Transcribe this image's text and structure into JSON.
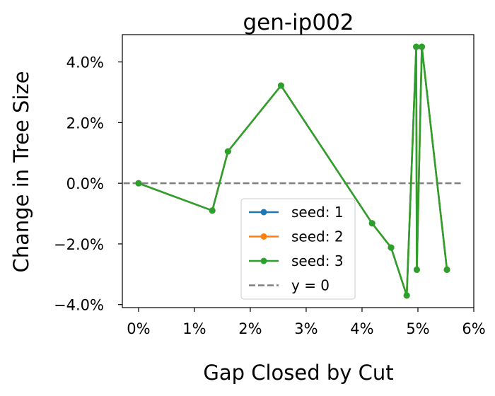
{
  "chart_data": {
    "type": "line",
    "title": "gen-ip002",
    "xlabel": "Gap Closed by Cut",
    "ylabel": "Change in Tree Size",
    "xlim": [
      -0.29,
      6.0
    ],
    "ylim": [
      -4.1,
      4.9
    ],
    "x_ticks": [
      0,
      1,
      2,
      3,
      4,
      5,
      6
    ],
    "x_tick_labels": [
      "0%",
      "1%",
      "2%",
      "3%",
      "4%",
      "5%",
      "6%"
    ],
    "y_ticks": [
      -4,
      -2,
      0,
      2,
      4
    ],
    "y_tick_labels": [
      "−4.0%",
      "−2.0%",
      "0.0%",
      "2.0%",
      "4.0%"
    ],
    "grid": false,
    "legend_position": "lower-center",
    "x_unit": "%",
    "y_unit": "%",
    "series": [
      {
        "name": "seed: 1",
        "color": "#1f77b4",
        "x": [
          0.0,
          1.32,
          1.6,
          2.55,
          4.18,
          4.52,
          4.8,
          4.97,
          4.98,
          5.07,
          5.52
        ],
        "y": [
          0.0,
          -0.9,
          1.05,
          3.22,
          -1.32,
          -2.12,
          -3.7,
          4.5,
          -2.85,
          4.5,
          -2.85
        ]
      },
      {
        "name": "seed: 2",
        "color": "#ff7f0e",
        "x": [
          0.0,
          1.32,
          1.6,
          2.55,
          4.18,
          4.52,
          4.8,
          4.97,
          4.98,
          5.07,
          5.52
        ],
        "y": [
          0.0,
          -0.9,
          1.05,
          3.22,
          -1.32,
          -2.12,
          -3.7,
          4.5,
          -2.85,
          4.5,
          -2.85
        ]
      },
      {
        "name": "seed: 3",
        "color": "#2ca02c",
        "x": [
          0.0,
          1.32,
          1.6,
          2.55,
          4.18,
          4.52,
          4.8,
          4.97,
          4.98,
          5.07,
          5.52
        ],
        "y": [
          0.0,
          -0.9,
          1.05,
          3.22,
          -1.32,
          -2.12,
          -3.7,
          4.5,
          -2.85,
          4.5,
          -2.85
        ]
      }
    ],
    "reference_line": {
      "name": "y = 0",
      "y": 0,
      "x_range": [
        -0.27,
        5.77
      ],
      "color": "#7f7f7f",
      "style": "dashed"
    }
  }
}
